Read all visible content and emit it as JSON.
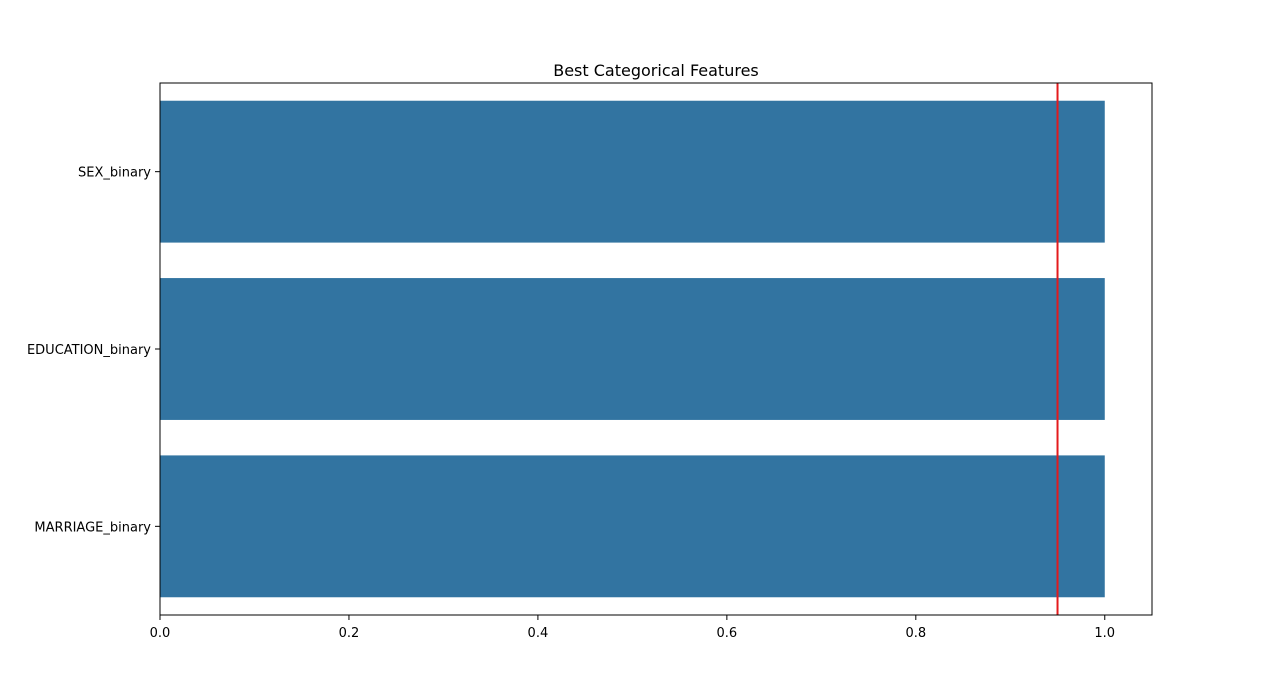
{
  "chart_data": {
    "type": "bar",
    "orientation": "horizontal",
    "title": "Best Categorical Features",
    "xlabel": "",
    "ylabel": "",
    "categories": [
      "SEX_binary",
      "EDUCATION_binary",
      "MARRIAGE_binary"
    ],
    "values": [
      1.0,
      1.0,
      1.0
    ],
    "xlim": [
      0,
      1.05
    ],
    "xticks": [
      0.0,
      0.2,
      0.4,
      0.6,
      0.8,
      1.0
    ],
    "xtick_labels": [
      "0.0",
      "0.2",
      "0.4",
      "0.6",
      "0.8",
      "1.0"
    ],
    "grid": false,
    "bar_color": "#3274a1",
    "reference_line": {
      "value": 0.95,
      "orientation": "vertical",
      "color": "#e41a1c"
    }
  }
}
